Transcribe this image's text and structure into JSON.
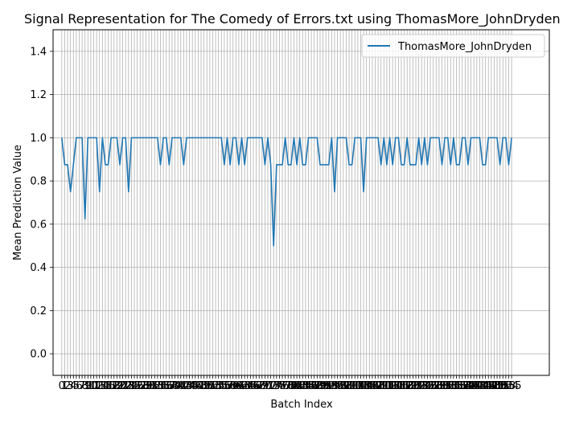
{
  "chart_data": {
    "type": "line",
    "title": "Signal Representation for The Comedy of Errors.txt using ThomasMore_JohnDryden",
    "xlabel": "Batch Index",
    "ylabel": "Mean Prediction Value",
    "ylim": [
      -0.1,
      1.5
    ],
    "xlim": [
      -3,
      168
    ],
    "yticks": [
      "0.0",
      "0.2",
      "0.4",
      "0.6",
      "0.8",
      "1.0",
      "1.2",
      "1.4"
    ],
    "xtick_start": 0,
    "xtick_end": 155,
    "xtick_every": 1,
    "grid": true,
    "legend": "top-right",
    "series": [
      {
        "name": "ThomasMore_JohnDryden",
        "color": "#1f77b4",
        "values": [
          1.0,
          0.875,
          0.875,
          0.75,
          0.875,
          1.0,
          1.0,
          1.0,
          0.625,
          1.0,
          1.0,
          1.0,
          1.0,
          0.75,
          1.0,
          0.875,
          0.875,
          1.0,
          1.0,
          1.0,
          0.875,
          1.0,
          1.0,
          0.75,
          1.0,
          1.0,
          1.0,
          1.0,
          1.0,
          1.0,
          1.0,
          1.0,
          1.0,
          1.0,
          0.875,
          1.0,
          1.0,
          0.875,
          1.0,
          1.0,
          1.0,
          1.0,
          0.875,
          1.0,
          1.0,
          1.0,
          1.0,
          1.0,
          1.0,
          1.0,
          1.0,
          1.0,
          1.0,
          1.0,
          1.0,
          1.0,
          0.875,
          1.0,
          0.875,
          1.0,
          1.0,
          0.875,
          1.0,
          0.875,
          1.0,
          1.0,
          1.0,
          1.0,
          1.0,
          1.0,
          0.875,
          1.0,
          0.875,
          0.5,
          0.875,
          0.875,
          0.875,
          1.0,
          0.875,
          0.875,
          1.0,
          0.875,
          1.0,
          0.875,
          0.875,
          1.0,
          1.0,
          1.0,
          1.0,
          0.875,
          0.875,
          0.875,
          0.875,
          1.0,
          0.75,
          1.0,
          1.0,
          1.0,
          1.0,
          0.875,
          0.875,
          1.0,
          1.0,
          1.0,
          0.75,
          1.0,
          1.0,
          1.0,
          1.0,
          1.0,
          0.875,
          1.0,
          0.875,
          1.0,
          0.875,
          1.0,
          1.0,
          0.875,
          0.875,
          1.0,
          0.875,
          0.875,
          0.875,
          1.0,
          0.875,
          1.0,
          0.875,
          1.0,
          1.0,
          1.0,
          1.0,
          0.875,
          1.0,
          1.0,
          0.875,
          1.0,
          0.875,
          0.875,
          1.0,
          1.0,
          0.875,
          1.0,
          1.0,
          1.0,
          1.0,
          0.875,
          0.875,
          1.0,
          1.0,
          1.0,
          1.0,
          0.875,
          1.0,
          1.0,
          0.875,
          1.0
        ]
      }
    ]
  }
}
